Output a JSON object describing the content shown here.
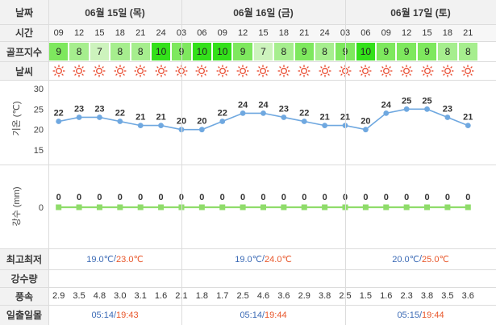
{
  "labels": {
    "date": "날짜",
    "time": "시간",
    "golf_index": "골프지수",
    "weather": "날씨",
    "temp_axis": "기온 (℃)",
    "rain_axis": "강수 (mm)",
    "minmax": "최고최저",
    "precip": "강수량",
    "wind": "풍속",
    "sunrise_sunset": "일출일몰"
  },
  "days": [
    {
      "title": "06월 15일 (목)",
      "min": "19.0℃",
      "max": "23.0℃",
      "sunrise": "05:14",
      "sunset": "19:43"
    },
    {
      "title": "06월 16일 (금)",
      "min": "19.0℃",
      "max": "24.0℃",
      "sunrise": "05:14",
      "sunset": "19:44"
    },
    {
      "title": "06월 17일 (토)",
      "min": "20.0℃",
      "max": "25.0℃",
      "sunrise": "05:15",
      "sunset": "19:44"
    }
  ],
  "separator": "/",
  "hours": [
    "09",
    "12",
    "15",
    "18",
    "21",
    "24",
    "03",
    "06",
    "09",
    "12",
    "15",
    "18",
    "21",
    "24",
    "03",
    "06",
    "09",
    "12",
    "15",
    "18",
    "21"
  ],
  "golf_scores": [
    9,
    8,
    7,
    8,
    8,
    10,
    9,
    10,
    10,
    9,
    7,
    8,
    9,
    8,
    9,
    10,
    9,
    9,
    9,
    8,
    8
  ],
  "weather_icon": "sun-icon",
  "wind": [
    "2.9",
    "3.5",
    "4.8",
    "3.0",
    "3.1",
    "1.6",
    "2.1",
    "1.8",
    "1.7",
    "2.5",
    "4.6",
    "3.6",
    "2.9",
    "3.8",
    "2.5",
    "1.5",
    "1.6",
    "2.3",
    "3.8",
    "3.5",
    "3.6"
  ],
  "colors": {
    "score_10": "#33e01a",
    "score_9": "#7ee85e",
    "score_8": "#a6ee8e",
    "score_7": "#cdf3bd",
    "sun": "#e8462a",
    "temp_line": "#6fa8e0",
    "rain_line": "#8fdc6a",
    "header_bg": "#f2f2f2"
  },
  "chart_data": [
    {
      "type": "line",
      "ylabel": "기온 (℃)",
      "ylim": [
        15,
        30
      ],
      "yticks": [
        15,
        20,
        25,
        30
      ],
      "x": [
        "09",
        "12",
        "15",
        "18",
        "21",
        "24",
        "03",
        "06",
        "09",
        "12",
        "15",
        "18",
        "21",
        "24",
        "03",
        "06",
        "09",
        "12",
        "15",
        "18",
        "21"
      ],
      "values": [
        22,
        23,
        23,
        22,
        21,
        21,
        20,
        20,
        22,
        24,
        24,
        23,
        22,
        21,
        21,
        20,
        24,
        25,
        25,
        23,
        21
      ]
    },
    {
      "type": "line",
      "ylabel": "강수 (mm)",
      "yticks": [
        0
      ],
      "x": [
        "09",
        "12",
        "15",
        "18",
        "21",
        "24",
        "03",
        "06",
        "09",
        "12",
        "15",
        "18",
        "21",
        "24",
        "03",
        "06",
        "09",
        "12",
        "15",
        "18",
        "21"
      ],
      "values": [
        0,
        0,
        0,
        0,
        0,
        0,
        0,
        0,
        0,
        0,
        0,
        0,
        0,
        0,
        0,
        0,
        0,
        0,
        0,
        0,
        0
      ]
    }
  ]
}
